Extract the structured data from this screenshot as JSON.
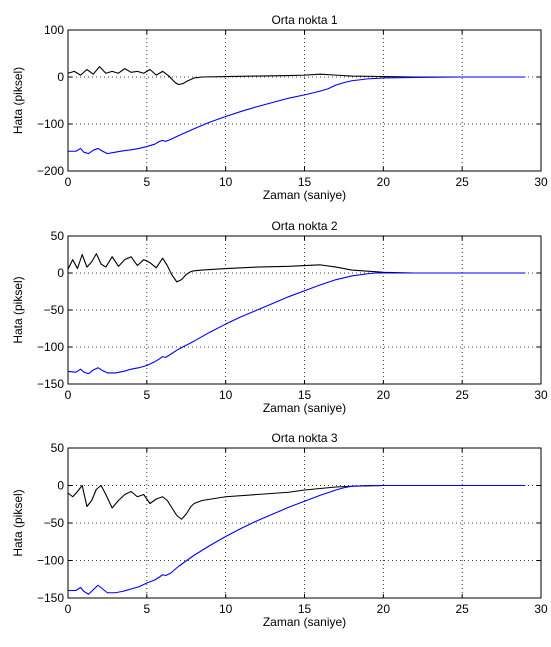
{
  "chart_data": [
    {
      "type": "line",
      "title": "Orta nokta 1",
      "xlabel": "Zaman (saniye)",
      "ylabel": "Hata (piksel)",
      "xlim": [
        0,
        30
      ],
      "ylim": [
        -200,
        100
      ],
      "xticks": [
        0,
        5,
        10,
        15,
        20,
        25,
        30
      ],
      "yticks": [
        -200,
        -100,
        0,
        100
      ],
      "grid": true,
      "series": [
        {
          "color": "#000000",
          "x": [
            0,
            0.4,
            0.8,
            1.2,
            1.6,
            2.0,
            2.4,
            2.8,
            3.2,
            3.6,
            4.0,
            4.4,
            4.8,
            5.2,
            5.6,
            6.0,
            6.4,
            6.8,
            7.0,
            7.3,
            7.6,
            8.0,
            8.5,
            10,
            12,
            14,
            15,
            16,
            17,
            18,
            20,
            22,
            25,
            29
          ],
          "y": [
            8,
            12,
            4,
            16,
            6,
            22,
            8,
            12,
            8,
            18,
            10,
            12,
            8,
            16,
            4,
            12,
            2,
            -12,
            -16,
            -14,
            -8,
            -2,
            0,
            1,
            2,
            3,
            4,
            6,
            4,
            2,
            1,
            0,
            0,
            0
          ]
        },
        {
          "color": "#0000ff",
          "x": [
            0,
            0.5,
            0.8,
            1.0,
            1.3,
            1.6,
            1.9,
            2.2,
            2.5,
            3.0,
            3.5,
            4.0,
            4.5,
            5.0,
            5.5,
            5.8,
            6.0,
            6.2,
            6.5,
            7.0,
            8.0,
            9.0,
            10.0,
            11.0,
            12.0,
            13.0,
            14.0,
            15.0,
            16.0,
            16.5,
            17.0,
            17.5,
            18.0,
            19.0,
            20.0,
            22.0,
            25.0,
            29.0
          ],
          "y": [
            -158,
            -158,
            -152,
            -160,
            -163,
            -156,
            -152,
            -158,
            -163,
            -160,
            -157,
            -155,
            -152,
            -148,
            -143,
            -137,
            -135,
            -137,
            -133,
            -125,
            -110,
            -96,
            -84,
            -73,
            -63,
            -54,
            -45,
            -38,
            -30,
            -25,
            -17,
            -12,
            -8,
            -4,
            -2,
            -1,
            0,
            0
          ]
        }
      ]
    },
    {
      "type": "line",
      "title": "Orta nokta 2",
      "xlabel": "Zaman (saniye)",
      "ylabel": "Hata (piksel)",
      "xlim": [
        0,
        30
      ],
      "ylim": [
        -150,
        50
      ],
      "xticks": [
        0,
        5,
        10,
        15,
        20,
        25,
        30
      ],
      "yticks": [
        -150,
        -100,
        -50,
        0,
        50
      ],
      "grid": true,
      "series": [
        {
          "color": "#000000",
          "x": [
            0,
            0.3,
            0.6,
            0.9,
            1.2,
            1.5,
            1.8,
            2.1,
            2.4,
            2.8,
            3.2,
            3.6,
            4.0,
            4.4,
            4.8,
            5.2,
            5.6,
            6.0,
            6.3,
            6.6,
            6.9,
            7.2,
            7.5,
            7.8,
            8.0,
            8.5,
            10,
            12,
            14,
            15,
            16,
            17,
            18,
            20,
            22,
            25,
            29
          ],
          "y": [
            5,
            18,
            6,
            25,
            8,
            15,
            26,
            12,
            8,
            22,
            9,
            18,
            22,
            10,
            18,
            14,
            7,
            20,
            10,
            -3,
            -12,
            -9,
            -2,
            2,
            3,
            4,
            6,
            8,
            9,
            10,
            11,
            8,
            4,
            1,
            0,
            0,
            0
          ]
        },
        {
          "color": "#0000ff",
          "x": [
            0,
            0.5,
            0.8,
            1.0,
            1.3,
            1.6,
            1.9,
            2.2,
            2.5,
            3.0,
            3.5,
            4.0,
            4.5,
            5.0,
            5.5,
            5.8,
            6.0,
            6.2,
            6.5,
            7.0,
            8.0,
            9.0,
            10.0,
            11.0,
            12.0,
            13.0,
            14.0,
            15.0,
            16.0,
            17.0,
            18.0,
            19.0,
            19.5,
            20.0,
            22.0,
            25.0,
            29.0
          ],
          "y": [
            -133,
            -134,
            -130,
            -134,
            -136,
            -131,
            -128,
            -132,
            -135,
            -135,
            -133,
            -130,
            -128,
            -125,
            -120,
            -116,
            -113,
            -114,
            -110,
            -103,
            -92,
            -80,
            -69,
            -59,
            -50,
            -41,
            -32,
            -24,
            -16,
            -9,
            -4,
            -1,
            0,
            0,
            0,
            0,
            0
          ]
        }
      ]
    },
    {
      "type": "line",
      "title": "Orta nokta 3",
      "xlabel": "Zaman (saniye)",
      "ylabel": "Hata (piksel)",
      "xlim": [
        0,
        30
      ],
      "ylim": [
        -150,
        50
      ],
      "xticks": [
        0,
        5,
        10,
        15,
        20,
        25,
        30
      ],
      "yticks": [
        -150,
        -100,
        -50,
        0,
        50
      ],
      "grid": true,
      "series": [
        {
          "color": "#000000",
          "x": [
            0,
            0.3,
            0.6,
            0.9,
            1.2,
            1.5,
            1.8,
            2.1,
            2.4,
            2.8,
            3.2,
            3.6,
            4.0,
            4.4,
            4.8,
            5.2,
            5.6,
            6.0,
            6.3,
            6.6,
            6.9,
            7.2,
            7.5,
            7.8,
            8.0,
            8.5,
            10,
            12,
            14,
            15,
            16,
            17,
            18,
            20,
            22,
            25,
            29
          ],
          "y": [
            -10,
            -15,
            -8,
            0,
            -28,
            -20,
            -5,
            0,
            -12,
            -30,
            -20,
            -12,
            -8,
            -15,
            -12,
            -24,
            -18,
            -15,
            -20,
            -30,
            -40,
            -45,
            -38,
            -28,
            -24,
            -20,
            -15,
            -12,
            -9,
            -6,
            -4,
            -2,
            -1,
            0,
            0,
            0,
            0
          ]
        },
        {
          "color": "#0000ff",
          "x": [
            0,
            0.5,
            0.8,
            1.0,
            1.3,
            1.6,
            1.9,
            2.2,
            2.5,
            3.0,
            3.5,
            4.0,
            4.5,
            5.0,
            5.5,
            5.8,
            6.0,
            6.2,
            6.5,
            7.0,
            8.0,
            9.0,
            10.0,
            11.0,
            12.0,
            13.0,
            14.0,
            15.0,
            16.0,
            17.0,
            17.5,
            18.0,
            19.0,
            20.0,
            22.0,
            25.0,
            29.0
          ],
          "y": [
            -140,
            -140,
            -136,
            -141,
            -145,
            -139,
            -133,
            -138,
            -143,
            -143,
            -141,
            -138,
            -135,
            -130,
            -126,
            -122,
            -119,
            -120,
            -117,
            -108,
            -93,
            -80,
            -68,
            -57,
            -47,
            -38,
            -29,
            -21,
            -13,
            -6,
            -3,
            -1,
            0,
            0,
            0,
            0,
            0
          ]
        }
      ]
    }
  ]
}
